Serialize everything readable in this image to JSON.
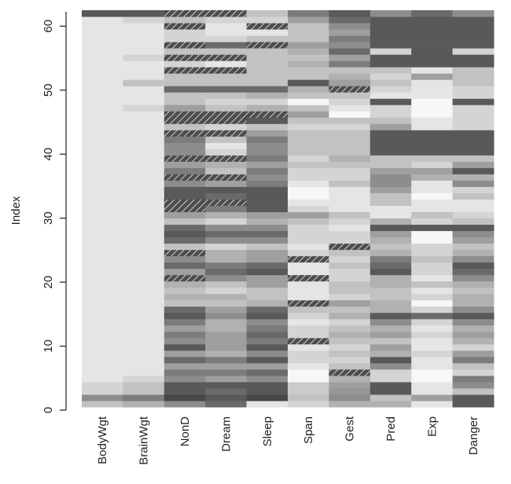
{
  "chart_data": {
    "type": "heatmap",
    "title": "",
    "xlabel": "",
    "ylabel": "Index",
    "ylim": [
      0,
      62
    ],
    "y_ticks": [
      "0",
      "10",
      "20",
      "30",
      "40",
      "50",
      "60"
    ],
    "columns": [
      "BodyWgt",
      "BrainWgt",
      "NonD",
      "Dream",
      "Sleep",
      "Span",
      "Gest",
      "Pred",
      "Exp",
      "Danger"
    ],
    "grid": false,
    "legend": "none",
    "missing_style": "hatched",
    "colors": {
      "low": "#f7f7f7",
      "high": "#474747",
      "missing": "#4d4d4d"
    },
    "levels": [
      [
        0.3,
        0.4,
        0.6,
        0.8,
        0.1,
        0.2,
        0.4,
        0.4,
        0.1,
        0.9
      ],
      [
        0.6,
        0.7,
        1.0,
        0.9,
        1.0,
        0.3,
        0.6,
        0.3,
        0.5,
        0.9
      ],
      [
        0.2,
        0.3,
        0.9,
        0.8,
        0.9,
        0.25,
        0.55,
        0.9,
        0.1,
        0.3
      ],
      [
        0.2,
        0.3,
        0.9,
        0.9,
        0.9,
        0.25,
        0.5,
        0.9,
        0.1,
        0.6
      ],
      [
        0.1,
        0.2,
        0.6,
        0.5,
        0.6,
        0.0,
        0.4,
        0.2,
        0.0,
        0.7
      ],
      [
        0.1,
        0.1,
        0.7,
        0.7,
        0.8,
        0.0,
        null,
        0.2,
        0.0,
        0.2
      ],
      [
        0.1,
        0.1,
        0.5,
        0.5,
        0.5,
        0.1,
        0.3,
        0.6,
        0.1,
        0.3
      ],
      [
        0.1,
        0.1,
        0.8,
        0.7,
        0.9,
        0.2,
        0.2,
        0.9,
        0.1,
        0.7
      ],
      [
        0.1,
        0.1,
        0.5,
        0.4,
        0.6,
        0.2,
        0.3,
        0.4,
        0.2,
        0.5
      ],
      [
        0.1,
        0.1,
        0.9,
        0.5,
        0.9,
        0.1,
        0.2,
        0.5,
        0.1,
        0.2
      ],
      [
        0.1,
        0.1,
        0.6,
        0.5,
        0.7,
        null,
        0.3,
        0.3,
        0.1,
        0.4
      ],
      [
        0.1,
        0.1,
        0.7,
        0.5,
        0.8,
        0.2,
        0.4,
        0.5,
        0.2,
        0.5
      ],
      [
        0.1,
        0.1,
        0.5,
        0.4,
        0.7,
        0.2,
        0.3,
        0.4,
        0.1,
        0.4
      ],
      [
        0.1,
        0.1,
        0.7,
        0.4,
        0.6,
        0.1,
        0.2,
        0.6,
        0.2,
        0.6
      ],
      [
        0.1,
        0.1,
        0.9,
        0.6,
        0.9,
        0.2,
        0.4,
        0.9,
        0.8,
        0.9
      ],
      [
        0.1,
        0.1,
        0.8,
        0.5,
        0.8,
        0.3,
        0.3,
        0.4,
        0.2,
        0.6
      ],
      [
        0.1,
        0.1,
        0.3,
        0.3,
        0.4,
        null,
        0.5,
        0.4,
        0.0,
        0.4
      ],
      [
        0.1,
        0.1,
        0.4,
        0.4,
        0.3,
        0.1,
        0.2,
        0.3,
        0.2,
        0.4
      ],
      [
        0.1,
        0.1,
        0.3,
        0.2,
        0.3,
        0.1,
        0.3,
        0.3,
        0.1,
        0.3
      ],
      [
        0.1,
        0.1,
        0.4,
        0.3,
        0.5,
        0.1,
        0.3,
        0.4,
        0.3,
        0.4
      ],
      [
        0.1,
        0.1,
        null,
        0.6,
        0.5,
        null,
        0.2,
        0.4,
        0.1,
        0.6
      ],
      [
        0.1,
        0.1,
        0.5,
        0.8,
        0.9,
        0.1,
        0.2,
        0.9,
        0.2,
        0.8
      ],
      [
        0.1,
        0.1,
        0.8,
        0.7,
        0.8,
        0.1,
        0.3,
        0.8,
        0.2,
        0.9
      ],
      [
        0.1,
        0.1,
        0.6,
        0.4,
        0.5,
        null,
        0.2,
        0.7,
        0.3,
        0.6
      ],
      [
        0.1,
        0.1,
        null,
        0.4,
        0.5,
        0.2,
        0.3,
        0.4,
        0.2,
        0.4
      ],
      [
        0.1,
        0.1,
        0.3,
        0.2,
        0.3,
        0.1,
        null,
        0.3,
        0.2,
        0.3
      ],
      [
        0.1,
        0.1,
        0.8,
        0.6,
        0.6,
        0.2,
        0.2,
        0.4,
        0.0,
        0.5
      ],
      [
        0.1,
        0.1,
        0.9,
        0.8,
        0.8,
        0.2,
        0.2,
        0.5,
        0.0,
        0.6
      ],
      [
        0.1,
        0.1,
        0.8,
        0.6,
        0.6,
        0.2,
        0.1,
        0.9,
        0.9,
        0.9
      ],
      [
        0.1,
        0.1,
        0.3,
        0.2,
        0.4,
        0.3,
        0.2,
        0.4,
        0.2,
        0.3
      ],
      [
        0.1,
        0.1,
        0.5,
        0.4,
        0.5,
        0.5,
        0.3,
        0.1,
        0.3,
        0.2
      ],
      [
        0.1,
        0.1,
        null,
        0.7,
        0.9,
        0.2,
        0.1,
        0.1,
        0.1,
        0.1
      ],
      [
        0.1,
        0.1,
        null,
        null,
        0.9,
        0.1,
        0.1,
        0.3,
        0.1,
        0.1
      ],
      [
        0.1,
        0.1,
        0.9,
        0.8,
        0.9,
        0.0,
        0.1,
        0.3,
        0.0,
        0.3
      ],
      [
        0.1,
        0.1,
        0.9,
        0.9,
        0.9,
        0.0,
        0.1,
        0.5,
        0.1,
        0.2
      ],
      [
        0.1,
        0.1,
        0.6,
        0.5,
        0.7,
        0.1,
        0.3,
        0.6,
        0.1,
        0.6
      ],
      [
        0.1,
        0.1,
        null,
        null,
        0.6,
        0.2,
        0.2,
        0.6,
        0.4,
        0.4
      ],
      [
        0.1,
        0.1,
        0.7,
        0.3,
        0.7,
        0.2,
        0.2,
        0.5,
        0.5,
        0.9
      ],
      [
        0.1,
        0.1,
        0.5,
        0.4,
        0.5,
        0.3,
        0.3,
        0.3,
        0.2,
        0.5
      ],
      [
        0.1,
        0.1,
        null,
        null,
        0.7,
        0.2,
        0.4,
        0.3,
        0.3,
        0.3
      ],
      [
        0.1,
        0.1,
        0.6,
        0.2,
        0.6,
        0.3,
        0.3,
        0.9,
        0.9,
        0.9
      ],
      [
        0.1,
        0.1,
        0.6,
        0.1,
        0.6,
        0.3,
        0.3,
        0.9,
        0.9,
        0.9
      ],
      [
        0.1,
        0.1,
        0.7,
        0.3,
        0.7,
        0.3,
        0.3,
        0.9,
        0.9,
        0.9
      ],
      [
        0.1,
        0.1,
        null,
        null,
        0.5,
        0.3,
        0.3,
        0.9,
        0.9,
        0.9
      ],
      [
        0.1,
        0.1,
        0.3,
        0.2,
        0.3,
        0.2,
        0.2,
        0.5,
        0.1,
        0.2
      ],
      [
        0.1,
        0.1,
        null,
        null,
        0.9,
        0.3,
        0.3,
        0.3,
        0.1,
        0.2
      ],
      [
        0.1,
        0.1,
        null,
        null,
        null,
        0.5,
        0.0,
        0.2,
        0.0,
        0.2
      ],
      [
        0.1,
        0.2,
        0.5,
        0.3,
        0.4,
        0.3,
        0.1,
        0.2,
        0.0,
        0.2
      ],
      [
        0.1,
        0.1,
        0.3,
        0.2,
        0.2,
        0.0,
        0.2,
        0.9,
        0.0,
        0.9
      ],
      [
        0.1,
        0.1,
        0.3,
        0.3,
        0.4,
        0.3,
        0.3,
        0.1,
        0.1,
        0.2
      ],
      [
        0.1,
        0.1,
        0.8,
        0.8,
        0.8,
        0.4,
        null,
        0.2,
        0.1,
        0.2
      ],
      [
        0.1,
        0.3,
        0.3,
        0.3,
        0.3,
        0.9,
        0.5,
        0.3,
        0.1,
        0.3
      ],
      [
        0.1,
        0.1,
        0.3,
        0.3,
        0.3,
        0.3,
        0.4,
        0.2,
        0.5,
        0.3
      ],
      [
        0.1,
        0.1,
        null,
        null,
        0.3,
        0.3,
        0.3,
        0.3,
        0.1,
        0.3
      ],
      [
        0.1,
        0.1,
        0.2,
        0.1,
        0.3,
        0.4,
        0.7,
        0.9,
        0.9,
        0.9
      ],
      [
        0.1,
        0.2,
        null,
        null,
        0.3,
        0.3,
        0.5,
        0.9,
        0.9,
        0.9
      ],
      [
        0.1,
        0.1,
        0.3,
        0.3,
        0.3,
        0.4,
        0.8,
        0.2,
        0.9,
        0.2
      ],
      [
        0.1,
        0.1,
        null,
        0.8,
        null,
        0.5,
        0.6,
        0.9,
        0.9,
        0.9
      ],
      [
        0.1,
        0.1,
        0.2,
        0.2,
        0.3,
        0.3,
        0.7,
        0.9,
        0.9,
        0.9
      ],
      [
        0.1,
        0.1,
        0.2,
        0.1,
        0.1,
        0.3,
        0.5,
        0.9,
        0.9,
        0.9
      ],
      [
        0.1,
        0.1,
        null,
        0.1,
        null,
        0.3,
        0.6,
        0.9,
        0.9,
        0.9
      ],
      [
        0.1,
        0.2,
        0.3,
        0.2,
        0.2,
        0.5,
        0.8,
        0.9,
        0.9,
        0.9
      ],
      [
        0.9,
        0.9,
        null,
        null,
        0.3,
        0.7,
        0.9,
        0.6,
        0.8,
        0.6
      ]
    ]
  }
}
